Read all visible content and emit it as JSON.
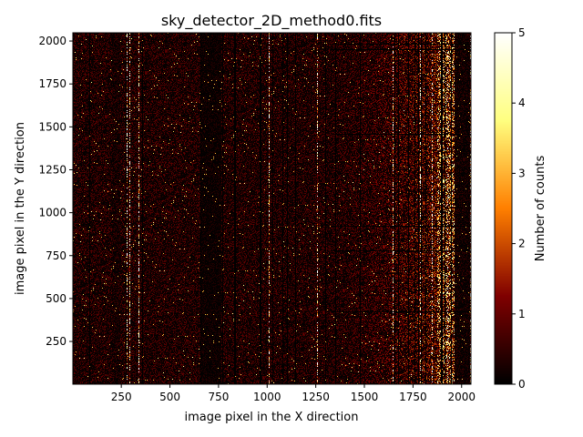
{
  "chart_data": {
    "type": "heatmap",
    "title": "sky_detector_2D_method0.fits",
    "xlabel": "image pixel in the X direction",
    "ylabel": "image pixel in the Y direction",
    "xlim": [
      1,
      2048
    ],
    "ylim": [
      1,
      2048
    ],
    "x_ticks": [
      250,
      500,
      750,
      1000,
      1250,
      1500,
      1750,
      2000
    ],
    "y_ticks": [
      250,
      500,
      750,
      1000,
      1250,
      1500,
      1750,
      2000
    ],
    "colormap": "afmhot",
    "colorbar": {
      "label": "Number of counts",
      "range": [
        0,
        5
      ],
      "ticks": [
        0,
        1,
        2,
        3,
        4,
        5
      ]
    },
    "grid": false
  }
}
